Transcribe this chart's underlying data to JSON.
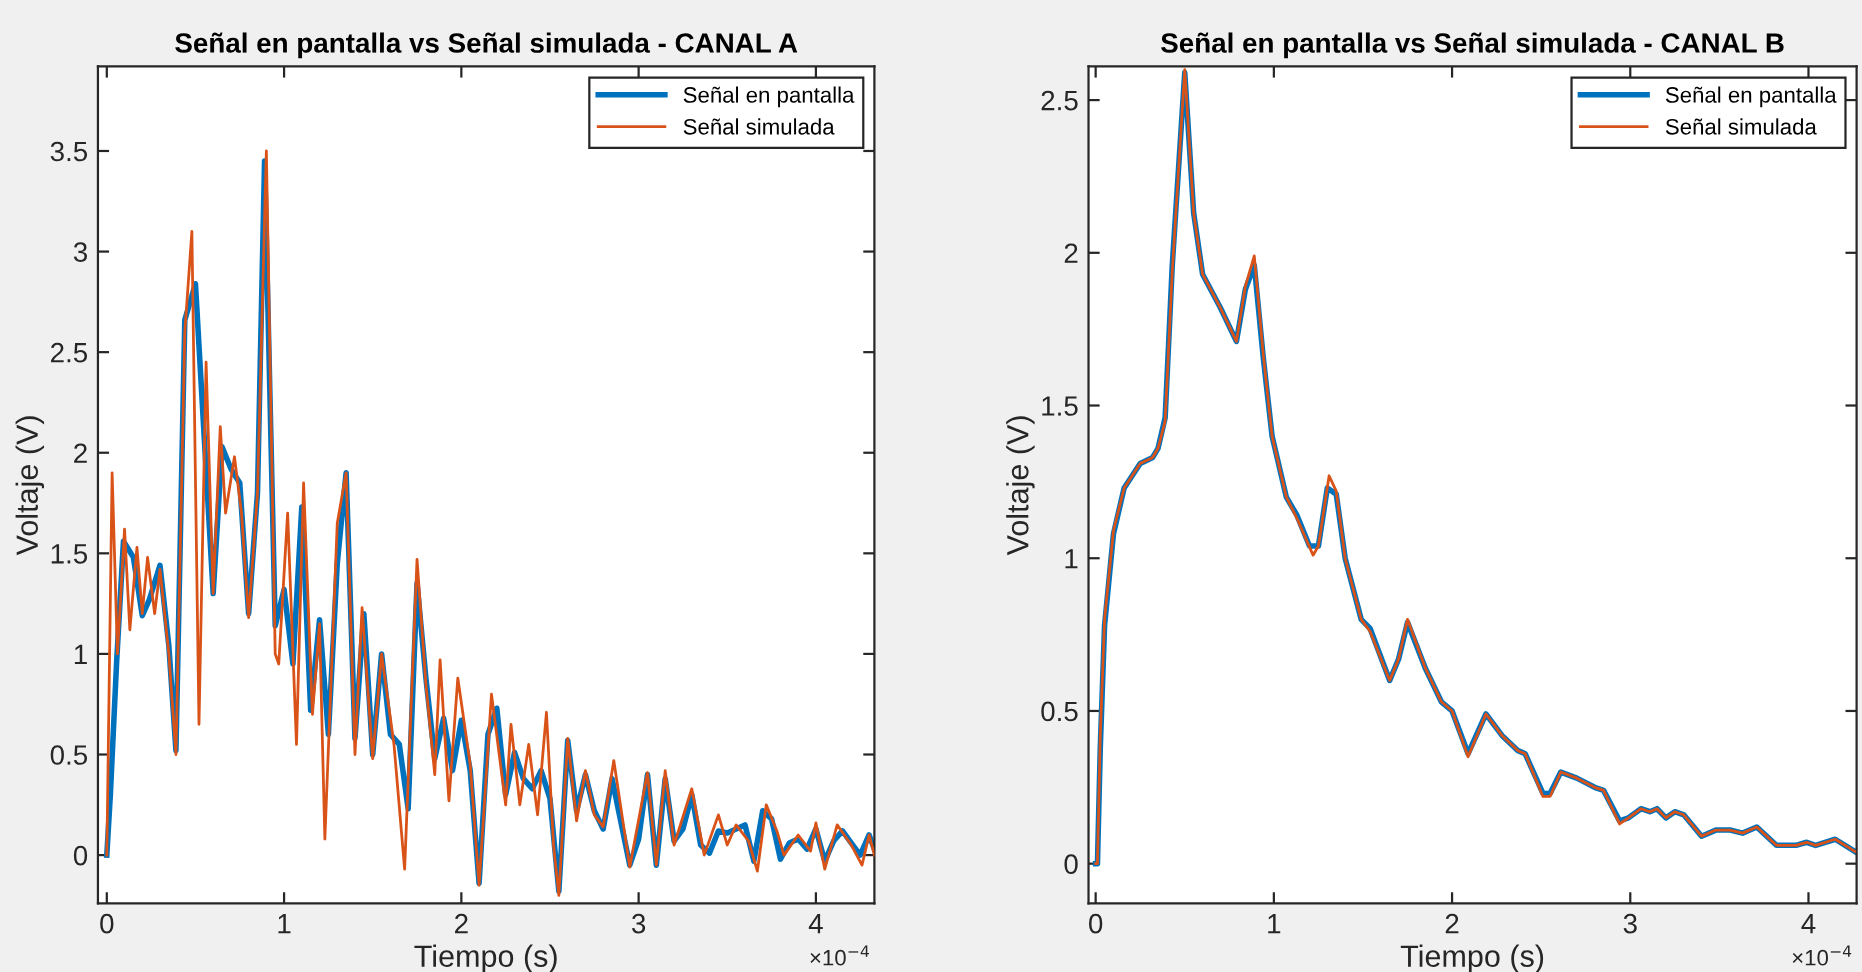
{
  "chart_data": [
    {
      "type": "line",
      "title": "Señal en pantalla vs Señal simulada - CANAL A",
      "xlabel": "Tiempo (s)",
      "ylabel": "Voltaje (V)",
      "annotations": [
        "×10$^{−4}$"
      ],
      "xlim": [
        -0.05,
        4.33
      ],
      "xticks": [
        0,
        1,
        2,
        3,
        4
      ],
      "ylim": [
        -0.24,
        3.92
      ],
      "yticks": [
        0,
        0.5,
        1,
        1.5,
        2,
        2.5,
        3,
        3.5
      ],
      "legend": "top right",
      "marker": "none",
      "line_style": "solid",
      "series": [
        {
          "name": "Señal en pantalla",
          "color": "#0072bd",
          "x": [
            0,
            0.02,
            0.056,
            0.094,
            0.15,
            0.2,
            0.24,
            0.3,
            0.35,
            0.39,
            0.44,
            0.5,
            0.6,
            0.65,
            0.7,
            0.75,
            0.8,
            0.85,
            0.89,
            0.95,
            1.0,
            1.05,
            1.1,
            1.15,
            1.2,
            1.25,
            1.3,
            1.35,
            1.4,
            1.45,
            1.5,
            1.55,
            1.6,
            1.65,
            1.7,
            1.75,
            1.8,
            1.85,
            1.9,
            1.95,
            2.0,
            2.05,
            2.1,
            2.15,
            2.2,
            2.25,
            2.3,
            2.35,
            2.4,
            2.45,
            2.5,
            2.55,
            2.6,
            2.65,
            2.7,
            2.75,
            2.8,
            2.85,
            2.95,
            3.0,
            3.05,
            3.1,
            3.15,
            3.2,
            3.25,
            3.3,
            3.35,
            3.4,
            3.45,
            3.5,
            3.55,
            3.6,
            3.65,
            3.7,
            3.75,
            3.8,
            3.85,
            3.9,
            3.95,
            4.0,
            4.05,
            4.1,
            4.15,
            4.2,
            4.25,
            4.3,
            4.33
          ],
          "values": [
            0,
            0.3,
            0.97,
            1.56,
            1.48,
            1.19,
            1.27,
            1.44,
            1.04,
            0.52,
            2.66,
            2.84,
            1.3,
            2.03,
            1.92,
            1.85,
            1.2,
            1.8,
            3.45,
            1.14,
            1.32,
            0.95,
            1.73,
            0.72,
            1.17,
            0.6,
            1.45,
            1.9,
            0.58,
            1.2,
            0.5,
            1.0,
            0.6,
            0.55,
            0.23,
            1.35,
            0.88,
            0.48,
            0.68,
            0.42,
            0.67,
            0.42,
            -0.14,
            0.6,
            0.73,
            0.3,
            0.51,
            0.38,
            0.33,
            0.42,
            0.28,
            -0.18,
            0.57,
            0.22,
            0.4,
            0.22,
            0.13,
            0.38,
            -0.05,
            0.08,
            0.4,
            -0.05,
            0.38,
            0.07,
            0.13,
            0.3,
            0.05,
            0.01,
            0.12,
            0.11,
            0.13,
            0.15,
            -0.03,
            0.22,
            0.18,
            -0.02,
            0.06,
            0.08,
            0.03,
            0.13,
            -0.03,
            0.07,
            0.12,
            0.06,
            0.0,
            0.1,
            0.03
          ]
        },
        {
          "name": "Señal simulada",
          "color": "#d95319",
          "x": [
            0,
            0.03,
            0.06,
            0.1,
            0.13,
            0.17,
            0.2,
            0.23,
            0.27,
            0.3,
            0.35,
            0.39,
            0.44,
            0.48,
            0.52,
            0.56,
            0.6,
            0.64,
            0.67,
            0.72,
            0.76,
            0.8,
            0.85,
            0.9,
            0.95,
            0.97,
            1.02,
            1.07,
            1.11,
            1.16,
            1.2,
            1.23,
            1.3,
            1.35,
            1.4,
            1.44,
            1.5,
            1.55,
            1.62,
            1.68,
            1.75,
            1.8,
            1.85,
            1.88,
            1.93,
            1.98,
            2.05,
            2.1,
            2.17,
            2.25,
            2.28,
            2.33,
            2.38,
            2.43,
            2.48,
            2.52,
            2.55,
            2.6,
            2.65,
            2.7,
            2.75,
            2.8,
            2.86,
            2.95,
            3.05,
            3.1,
            3.15,
            3.2,
            3.3,
            3.37,
            3.45,
            3.5,
            3.55,
            3.62,
            3.67,
            3.72,
            3.78,
            3.82,
            3.9,
            3.97,
            4.0,
            4.05,
            4.12,
            4.2,
            4.26,
            4.3,
            4.33
          ],
          "values": [
            0,
            1.9,
            1.0,
            1.62,
            1.12,
            1.53,
            1.2,
            1.48,
            1.2,
            1.42,
            1.0,
            0.5,
            2.6,
            3.1,
            0.65,
            2.45,
            1.3,
            2.13,
            1.7,
            1.98,
            1.7,
            1.18,
            1.8,
            3.5,
            1.0,
            0.95,
            1.7,
            0.55,
            1.85,
            0.7,
            1.15,
            0.08,
            1.65,
            1.9,
            0.5,
            1.23,
            0.48,
            1.0,
            0.55,
            -0.07,
            1.47,
            0.85,
            0.4,
            0.97,
            0.27,
            0.88,
            0.45,
            -0.15,
            0.8,
            0.25,
            0.65,
            0.25,
            0.55,
            0.2,
            0.71,
            0.05,
            -0.2,
            0.58,
            0.17,
            0.42,
            0.2,
            0.14,
            0.47,
            -0.06,
            0.41,
            -0.05,
            0.42,
            0.05,
            0.33,
            0.0,
            0.2,
            0.05,
            0.15,
            0.07,
            -0.08,
            0.25,
            0.12,
            0.0,
            0.1,
            0.02,
            0.16,
            -0.07,
            0.15,
            0.05,
            -0.05,
            0.1,
            0.0
          ]
        }
      ]
    },
    {
      "type": "line",
      "title": "Señal en pantalla vs Señal simulada - CANAL B",
      "xlabel": "Tiempo (s)",
      "ylabel": "Voltaje (V)",
      "annotations": [
        "×10$^{−4}$"
      ],
      "xlim": [
        -0.04,
        4.27
      ],
      "xticks": [
        0,
        1,
        2,
        3,
        4
      ],
      "ylim": [
        -0.13,
        2.61
      ],
      "yticks": [
        0,
        0.5,
        1,
        1.5,
        2,
        2.5
      ],
      "legend": "top right",
      "marker": "none",
      "line_style": "solid",
      "series": [
        {
          "name": "Señal en pantalla",
          "color": "#0072bd",
          "x": [
            0,
            0.01,
            0.026,
            0.05,
            0.1,
            0.16,
            0.25,
            0.32,
            0.35,
            0.39,
            0.43,
            0.5,
            0.55,
            0.6,
            0.7,
            0.79,
            0.84,
            0.89,
            0.94,
            0.99,
            1.07,
            1.13,
            1.2,
            1.25,
            1.3,
            1.35,
            1.4,
            1.49,
            1.54,
            1.65,
            1.7,
            1.75,
            1.85,
            1.94,
            2.0,
            2.09,
            2.19,
            2.28,
            2.37,
            2.41,
            2.51,
            2.55,
            2.61,
            2.7,
            2.8,
            2.85,
            2.94,
            2.99,
            3.06,
            3.11,
            3.15,
            3.2,
            3.25,
            3.3,
            3.4,
            3.48,
            3.56,
            3.63,
            3.71,
            3.82,
            3.93,
            3.99,
            4.04,
            4.15,
            4.26
          ],
          "values": [
            0,
            0,
            0.38,
            0.78,
            1.08,
            1.23,
            1.31,
            1.33,
            1.36,
            1.46,
            1.96,
            2.59,
            2.13,
            1.93,
            1.82,
            1.71,
            1.88,
            1.96,
            1.66,
            1.4,
            1.2,
            1.14,
            1.04,
            1.04,
            1.23,
            1.21,
            1.0,
            0.8,
            0.77,
            0.6,
            0.67,
            0.79,
            0.64,
            0.53,
            0.5,
            0.36,
            0.49,
            0.42,
            0.37,
            0.36,
            0.23,
            0.23,
            0.3,
            0.28,
            0.25,
            0.24,
            0.14,
            0.15,
            0.18,
            0.17,
            0.18,
            0.15,
            0.17,
            0.16,
            0.09,
            0.11,
            0.11,
            0.1,
            0.12,
            0.06,
            0.06,
            0.07,
            0.06,
            0.08,
            0.04
          ]
        },
        {
          "name": "Señal simulada",
          "color": "#d95319",
          "x": [
            0,
            0.01,
            0.026,
            0.05,
            0.1,
            0.16,
            0.25,
            0.32,
            0.35,
            0.39,
            0.43,
            0.5,
            0.55,
            0.6,
            0.7,
            0.79,
            0.84,
            0.89,
            0.94,
            0.99,
            1.07,
            1.13,
            1.22,
            1.25,
            1.31,
            1.35,
            1.4,
            1.49,
            1.54,
            1.65,
            1.7,
            1.75,
            1.85,
            1.94,
            2.0,
            2.09,
            2.19,
            2.28,
            2.37,
            2.41,
            2.51,
            2.55,
            2.61,
            2.7,
            2.8,
            2.85,
            2.94,
            2.99,
            3.06,
            3.11,
            3.15,
            3.2,
            3.25,
            3.3,
            3.4,
            3.48,
            3.56,
            3.63,
            3.71,
            3.82,
            3.93,
            3.99,
            4.04,
            4.15,
            4.26
          ],
          "values": [
            0,
            0,
            0.42,
            0.8,
            1.09,
            1.23,
            1.31,
            1.33,
            1.36,
            1.45,
            1.94,
            2.6,
            2.13,
            1.93,
            1.82,
            1.71,
            1.89,
            1.99,
            1.67,
            1.4,
            1.2,
            1.13,
            1.01,
            1.04,
            1.27,
            1.22,
            1.0,
            0.8,
            0.76,
            0.6,
            0.67,
            0.8,
            0.64,
            0.53,
            0.5,
            0.35,
            0.49,
            0.42,
            0.37,
            0.36,
            0.22,
            0.22,
            0.3,
            0.28,
            0.25,
            0.24,
            0.13,
            0.15,
            0.18,
            0.17,
            0.18,
            0.15,
            0.17,
            0.16,
            0.09,
            0.11,
            0.11,
            0.1,
            0.12,
            0.06,
            0.06,
            0.07,
            0.06,
            0.08,
            0.04
          ]
        }
      ]
    }
  ]
}
